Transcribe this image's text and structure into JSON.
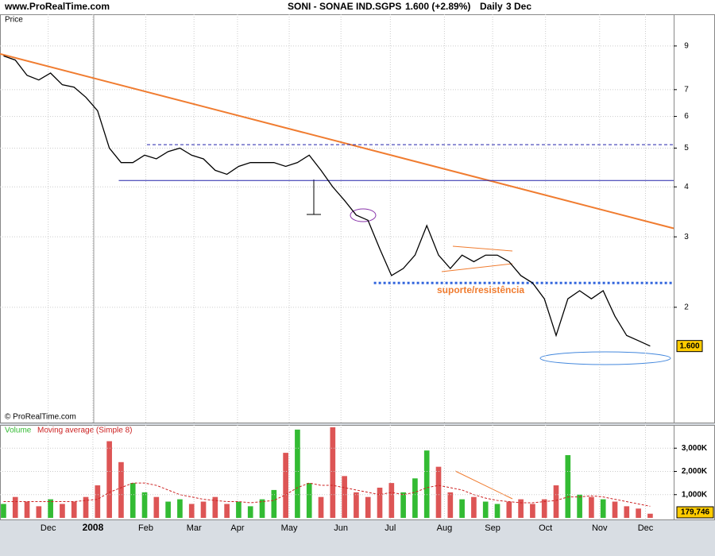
{
  "header": {
    "site": "www.ProRealTime.com",
    "symbol": "SONI - SONAE IND.SGPS",
    "quote": "1.600 (+2.89%)",
    "period": "Daily",
    "date": "3 Dec"
  },
  "chart_data": [
    {
      "type": "line",
      "y_label": "Price",
      "watermark": "© ProRealTime.com",
      "log_scale": true,
      "grid": true,
      "color": "#000000",
      "annotation": "suporte/resistência",
      "annotation_color": "#f07c30",
      "x": [
        0,
        1,
        2,
        3,
        4,
        5,
        6,
        7,
        8,
        9,
        10,
        11,
        12,
        13,
        14,
        15,
        16,
        17,
        18,
        19,
        20,
        21,
        22,
        23,
        24,
        25,
        26,
        27,
        28,
        29,
        30,
        31,
        32,
        33,
        34,
        35,
        36,
        37,
        38,
        39,
        40,
        41,
        42,
        43,
        44,
        45,
        46,
        47,
        48,
        49,
        50,
        51,
        52,
        53,
        54,
        55
      ],
      "values": [
        8.5,
        8.3,
        7.6,
        7.4,
        7.7,
        7.2,
        7.1,
        6.7,
        6.2,
        5.0,
        4.6,
        4.6,
        4.8,
        4.7,
        4.9,
        5.0,
        4.8,
        4.7,
        4.4,
        4.3,
        4.5,
        4.6,
        4.6,
        4.6,
        4.5,
        4.6,
        4.8,
        4.4,
        4.0,
        3.7,
        3.4,
        3.3,
        2.8,
        2.4,
        2.5,
        2.7,
        3.2,
        2.7,
        2.5,
        2.7,
        2.6,
        2.7,
        2.7,
        2.6,
        2.4,
        2.3,
        2.1,
        1.7,
        2.1,
        2.2,
        2.1,
        2.2,
        1.9,
        1.7,
        1.65,
        1.6
      ],
      "value_labels": [
        null,
        null,
        null,
        null,
        null,
        null,
        null,
        null,
        null,
        null,
        null,
        null,
        null,
        null,
        null,
        null,
        null,
        null,
        null,
        null,
        null,
        null,
        null,
        null,
        null,
        null,
        null,
        null,
        null,
        null,
        null,
        null,
        null,
        null,
        null,
        null,
        null,
        null,
        null,
        null,
        null,
        null,
        null,
        null,
        null,
        null,
        null,
        null,
        null,
        null,
        null,
        null,
        null,
        null,
        null,
        "1.600"
      ],
      "xlim": [
        -0.3,
        57
      ],
      "ylim": [
        1.03,
        10.8
      ],
      "yticks": [
        2,
        3,
        4,
        5,
        6,
        7,
        9
      ],
      "xticks": [
        {
          "value": 3.8,
          "label": "Dec"
        },
        {
          "value": 7.6,
          "label": "2008"
        },
        {
          "value": 12.1,
          "label": "Feb"
        },
        {
          "value": 16.2,
          "label": "Mar"
        },
        {
          "value": 19.9,
          "label": "Apr"
        },
        {
          "value": 24.3,
          "label": "May"
        },
        {
          "value": 28.7,
          "label": "Jun"
        },
        {
          "value": 32.9,
          "label": "Jul"
        },
        {
          "value": 37.5,
          "label": "Aug"
        },
        {
          "value": 41.6,
          "label": "Sep"
        },
        {
          "value": 46.1,
          "label": "Oct"
        },
        {
          "value": 50.7,
          "label": "Nov"
        },
        {
          "value": 54.6,
          "label": "Dec"
        }
      ],
      "trendlines": [
        {
          "x": [
            -0.3,
            57
          ],
          "values": [
            8.6,
            3.15
          ],
          "color": "#f07c30",
          "style": "solid"
        },
        {
          "x": [
            9.8,
            57
          ],
          "values": [
            4.15,
            4.15
          ],
          "color": "#2222aa",
          "style": "solid"
        },
        {
          "x": [
            12.2,
            57
          ],
          "values": [
            5.1,
            5.1
          ],
          "color": "#2222aa",
          "style": "dashed"
        },
        {
          "x": [
            31.5,
            57
          ],
          "values": [
            2.3,
            2.3
          ],
          "color": "#3366dd",
          "style": "dotted"
        }
      ]
    },
    {
      "type": "bar",
      "legend": "Volume",
      "ma_legend": "Moving average (Simple 8)",
      "grid": true,
      "up_color": "#33bb33",
      "down_color": "#dd5555",
      "ma_color": "#cc2222",
      "x": [
        0,
        1,
        2,
        3,
        4,
        5,
        6,
        7,
        8,
        9,
        10,
        11,
        12,
        13,
        14,
        15,
        16,
        17,
        18,
        19,
        20,
        21,
        22,
        23,
        24,
        25,
        26,
        27,
        28,
        29,
        30,
        31,
        32,
        33,
        34,
        35,
        36,
        37,
        38,
        39,
        40,
        41,
        42,
        43,
        44,
        45,
        46,
        47,
        48,
        49,
        50,
        51,
        52,
        53,
        54,
        55
      ],
      "values": [
        600000,
        900000,
        700000,
        500000,
        800000,
        600000,
        700000,
        900000,
        1400000,
        3300000,
        2400000,
        1500000,
        1100000,
        900000,
        700000,
        800000,
        600000,
        700000,
        900000,
        600000,
        700000,
        500000,
        800000,
        1200000,
        2800000,
        3800000,
        1500000,
        900000,
        3900000,
        1800000,
        1100000,
        900000,
        1300000,
        1500000,
        1100000,
        1700000,
        2900000,
        2200000,
        1100000,
        800000,
        900000,
        700000,
        600000,
        700000,
        800000,
        600000,
        800000,
        1400000,
        2700000,
        1000000,
        900000,
        800000,
        700000,
        500000,
        400000,
        179746
      ],
      "value_labels": [
        null,
        null,
        null,
        null,
        null,
        null,
        null,
        null,
        null,
        null,
        null,
        null,
        null,
        null,
        null,
        null,
        null,
        null,
        null,
        null,
        null,
        null,
        null,
        null,
        null,
        null,
        null,
        null,
        null,
        null,
        null,
        null,
        null,
        null,
        null,
        null,
        null,
        null,
        null,
        null,
        null,
        null,
        null,
        null,
        null,
        null,
        null,
        null,
        null,
        null,
        null,
        null,
        null,
        null,
        null,
        "179,746"
      ],
      "ma": [
        700000,
        700000,
        700000,
        700000,
        700000,
        700000,
        700000,
        750000,
        800000,
        1100000,
        1300000,
        1500000,
        1500000,
        1400000,
        1200000,
        1000000,
        900000,
        800000,
        750000,
        700000,
        700000,
        650000,
        700000,
        750000,
        1000000,
        1300000,
        1500000,
        1400000,
        1400000,
        1300000,
        1200000,
        1100000,
        1000000,
        1100000,
        1000000,
        1100000,
        1300000,
        1400000,
        1300000,
        1200000,
        1000000,
        850000,
        750000,
        700000,
        650000,
        650000,
        700000,
        750000,
        900000,
        900000,
        950000,
        900000,
        800000,
        700000,
        600000,
        500000
      ],
      "xlim": [
        -0.3,
        57
      ],
      "ylim": [
        0,
        4000000
      ],
      "yticks": [
        {
          "value": 1000000,
          "label": "1,000K"
        },
        {
          "value": 2000000,
          "label": "2,000K"
        },
        {
          "value": 3000000,
          "label": "3,000K"
        }
      ]
    }
  ]
}
